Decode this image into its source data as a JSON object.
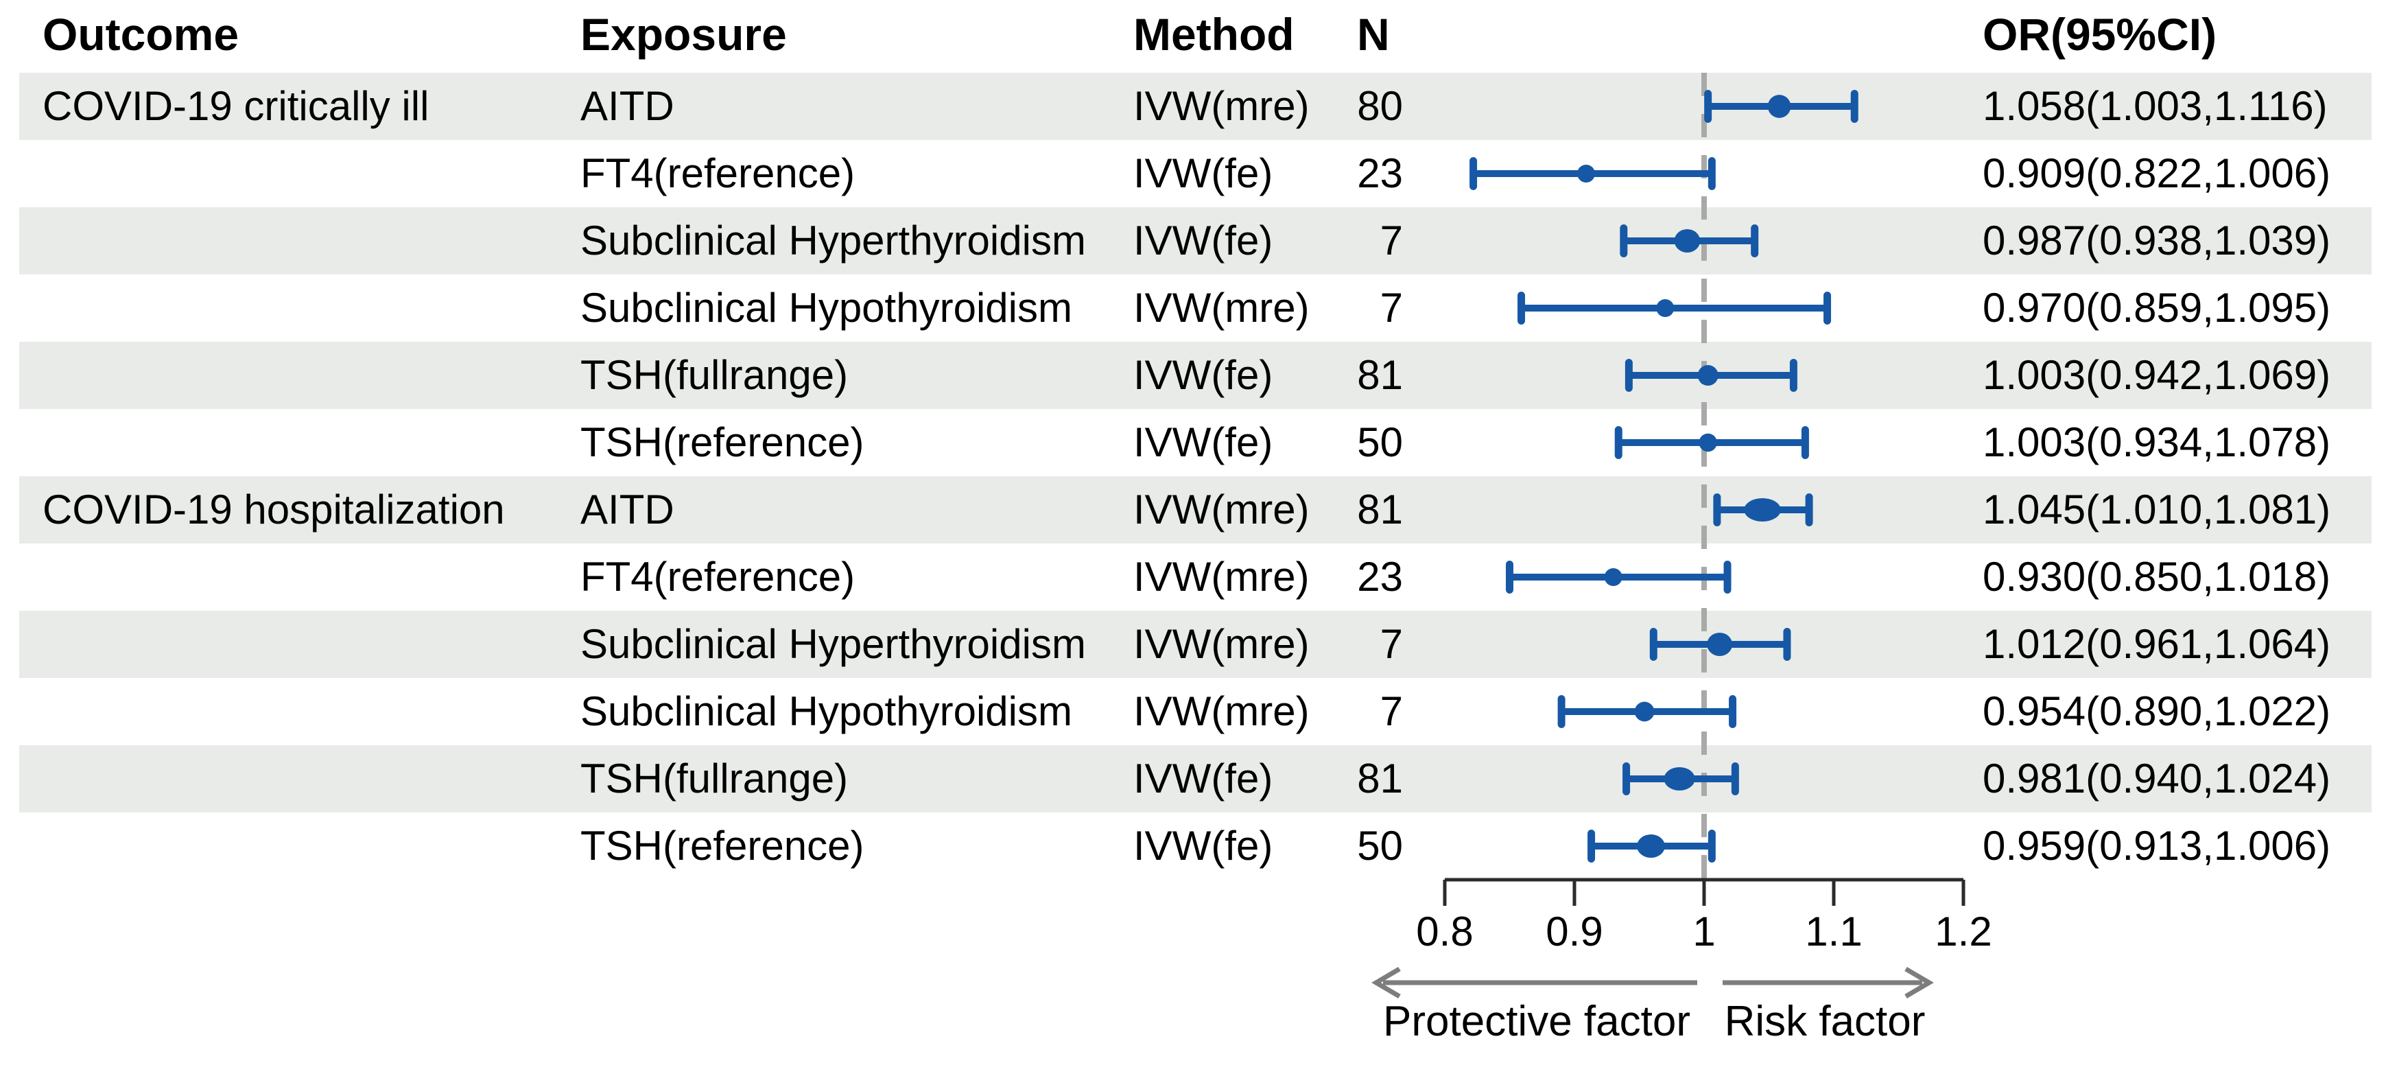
{
  "header": {
    "outcome": "Outcome",
    "exposure": "Exposure",
    "method": "Method",
    "n": "N",
    "or": "OR(95%CI)"
  },
  "chart_data": {
    "type": "forest",
    "x_axis": {
      "scale": "linear",
      "xlim": [
        0.8,
        1.2
      ],
      "tick_labels": [
        "0.8",
        "0.9",
        "1",
        "1.1",
        "1.2"
      ],
      "tick_values": [
        0.8,
        0.9,
        1,
        1.1,
        1.2
      ],
      "reference_value": 1
    },
    "arrows": {
      "left_label": "Protective factor",
      "right_label": "Risk factor"
    },
    "colors": {
      "marker_blue": "#1658a5",
      "row_band": "#e8ebe8",
      "reference_line": "#a9a9a9",
      "axis_line": "#2b2b2b",
      "arrow_gray": "#7d7d7d",
      "text": "#000000"
    },
    "rows": [
      {
        "outcome": "COVID-19 critically ill",
        "exposure": "AITD",
        "method": "IVW(mre)",
        "n": "80",
        "or": 1.058,
        "lo": 1.003,
        "hi": 1.116,
        "or_label": "1.058(1.003,1.116)"
      },
      {
        "outcome": "",
        "exposure": "FT4(reference)",
        "method": "IVW(fe)",
        "n": "23",
        "or": 0.909,
        "lo": 0.822,
        "hi": 1.006,
        "or_label": "0.909(0.822,1.006)"
      },
      {
        "outcome": "",
        "exposure": "Subclinical Hyperthyroidism",
        "method": "IVW(fe)",
        "n": "7",
        "or": 0.987,
        "lo": 0.938,
        "hi": 1.039,
        "or_label": "0.987(0.938,1.039)"
      },
      {
        "outcome": "",
        "exposure": "Subclinical Hypothyroidism",
        "method": "IVW(mre)",
        "n": "7",
        "or": 0.97,
        "lo": 0.859,
        "hi": 1.095,
        "or_label": "0.970(0.859,1.095)"
      },
      {
        "outcome": "",
        "exposure": "TSH(fullrange)",
        "method": "IVW(fe)",
        "n": "81",
        "or": 1.003,
        "lo": 0.942,
        "hi": 1.069,
        "or_label": "1.003(0.942,1.069)"
      },
      {
        "outcome": "",
        "exposure": "TSH(reference)",
        "method": "IVW(fe)",
        "n": "50",
        "or": 1.003,
        "lo": 0.934,
        "hi": 1.078,
        "or_label": "1.003(0.934,1.078)"
      },
      {
        "outcome": "COVID-19 hospitalization",
        "exposure": "AITD",
        "method": "IVW(mre)",
        "n": "81",
        "or": 1.045,
        "lo": 1.01,
        "hi": 1.081,
        "or_label": "1.045(1.010,1.081)"
      },
      {
        "outcome": "",
        "exposure": "FT4(reference)",
        "method": "IVW(mre)",
        "n": "23",
        "or": 0.93,
        "lo": 0.85,
        "hi": 1.018,
        "or_label": "0.930(0.850,1.018)"
      },
      {
        "outcome": "",
        "exposure": "Subclinical Hyperthyroidism",
        "method": "IVW(mre)",
        "n": "7",
        "or": 1.012,
        "lo": 0.961,
        "hi": 1.064,
        "or_label": "1.012(0.961,1.064)"
      },
      {
        "outcome": "",
        "exposure": "Subclinical Hypothyroidism",
        "method": "IVW(mre)",
        "n": "7",
        "or": 0.954,
        "lo": 0.89,
        "hi": 1.022,
        "or_label": "0.954(0.890,1.022)"
      },
      {
        "outcome": "",
        "exposure": "TSH(fullrange)",
        "method": "IVW(fe)",
        "n": "81",
        "or": 0.981,
        "lo": 0.94,
        "hi": 1.024,
        "or_label": "0.981(0.940,1.024)"
      },
      {
        "outcome": "",
        "exposure": "TSH(reference)",
        "method": "IVW(fe)",
        "n": "50",
        "or": 0.959,
        "lo": 0.913,
        "hi": 1.006,
        "or_label": "0.959(0.913,1.006)"
      }
    ]
  }
}
